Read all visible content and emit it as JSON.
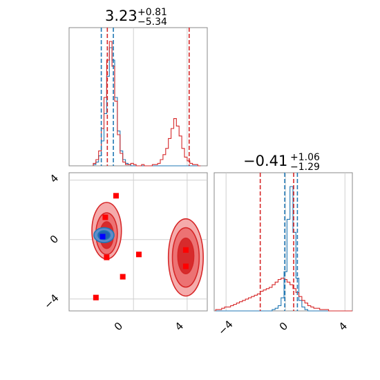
{
  "chart_data": [
    {
      "type": "histogram",
      "panel": "top-left",
      "title_main": "3.23",
      "title_plus": "+0.81",
      "title_minus": "−5.34",
      "xlim": [
        -4.8,
        5.5
      ],
      "grid": true,
      "x": [
        -2.9,
        -2.7,
        -2.5,
        -2.3,
        -2.1,
        -1.9,
        -1.7,
        -1.5,
        -1.3,
        -1.1,
        -0.9,
        -0.7,
        -0.5,
        -0.3,
        -0.1,
        0.1,
        0.3,
        0.5,
        0.7,
        0.9,
        1.1,
        1.3,
        1.5,
        1.7,
        1.9,
        2.1,
        2.3,
        2.5,
        2.7,
        2.9,
        3.1,
        3.3,
        3.5,
        3.7,
        3.9,
        4.1,
        4.3,
        4.5,
        4.7,
        4.9
      ],
      "series": [
        {
          "color": "#1f77b4",
          "values": [
            0.01,
            0.03,
            0.08,
            0.2,
            0.42,
            0.72,
            0.95,
            0.85,
            0.55,
            0.28,
            0.12,
            0.05,
            0.02,
            0.01,
            0,
            0,
            0,
            0,
            0,
            0,
            0,
            0,
            0,
            0,
            0,
            0,
            0,
            0,
            0,
            0,
            0,
            0,
            0,
            0,
            0,
            0,
            0,
            0,
            0,
            0
          ]
        },
        {
          "color": "#d62728",
          "values": [
            0.02,
            0.05,
            0.12,
            0.3,
            0.55,
            0.85,
            1.0,
            0.8,
            0.52,
            0.25,
            0.1,
            0.03,
            0.01,
            0.01,
            0.02,
            0.01,
            0,
            0,
            0.01,
            0,
            0,
            0,
            0.01,
            0.01,
            0.02,
            0.05,
            0.09,
            0.14,
            0.22,
            0.3,
            0.38,
            0.32,
            0.24,
            0.14,
            0.07,
            0.04,
            0.02,
            0.01,
            0.01,
            0
          ]
        }
      ],
      "vlines": [
        {
          "x": -2.4,
          "color": "#1f77b4"
        },
        {
          "x": -1.5,
          "color": "#1f77b4"
        },
        {
          "x": -1.95,
          "color": "#d62728"
        },
        {
          "x": 4.15,
          "color": "#d62728"
        }
      ]
    },
    {
      "type": "scatter",
      "panel": "bottom-left",
      "xlim": [
        -4.8,
        5.5
      ],
      "ylim": [
        -4.8,
        4.5
      ],
      "xticks": [
        "0",
        "4"
      ],
      "yticks": [
        "4",
        "0",
        "−4"
      ],
      "grid": true,
      "red_points": [
        [
          -1.3,
          2.95
        ],
        [
          -2.1,
          1.5
        ],
        [
          -2.0,
          -1.2
        ],
        [
          -0.8,
          -2.5
        ],
        [
          0.4,
          -1.0
        ],
        [
          -2.8,
          -3.9
        ],
        [
          3.9,
          -0.7
        ],
        [
          3.9,
          -1.8
        ]
      ],
      "blue_points": [
        [
          -2.3,
          0.2
        ]
      ],
      "contours": [
        {
          "cx": -2.0,
          "cy": 0.6,
          "rx": 1.1,
          "ry": 1.9,
          "fill": "#f4a6a6",
          "stroke": "#d62728"
        },
        {
          "cx": -2.0,
          "cy": 0.4,
          "rx": 0.8,
          "ry": 1.4,
          "fill": "#eb6f70",
          "stroke": "#d62728"
        },
        {
          "cx": -2.0,
          "cy": 0.3,
          "rx": 0.5,
          "ry": 0.9,
          "fill": "#d62728",
          "stroke": "#d62728"
        },
        {
          "cx": 3.9,
          "cy": -1.2,
          "rx": 1.3,
          "ry": 2.6,
          "fill": "#f4a6a6",
          "stroke": "#d62728"
        },
        {
          "cx": 3.9,
          "cy": -1.2,
          "rx": 1.0,
          "ry": 2.0,
          "fill": "#eb6f70",
          "stroke": "#d62728"
        },
        {
          "cx": 3.9,
          "cy": -1.1,
          "rx": 0.6,
          "ry": 1.2,
          "fill": "#d62728",
          "stroke": "#d62728"
        },
        {
          "cx": -2.2,
          "cy": 0.3,
          "rx": 0.75,
          "ry": 0.5,
          "fill": "#5b8fd0",
          "stroke": "#1f77b4"
        },
        {
          "cx": -2.2,
          "cy": 0.3,
          "rx": 0.45,
          "ry": 0.3,
          "fill": "#1f5fb0",
          "stroke": "#1f77b4"
        }
      ]
    },
    {
      "type": "histogram",
      "panel": "bottom-right",
      "title_main": "−0.41",
      "title_plus": "+1.06",
      "title_minus": "−1.29",
      "xlim": [
        -4.8,
        4.5
      ],
      "xticks": [
        "−4",
        "0",
        "4"
      ],
      "grid": true,
      "x": [
        -4.6,
        -4.4,
        -4.2,
        -4.0,
        -3.8,
        -3.6,
        -3.4,
        -3.2,
        -3.0,
        -2.8,
        -2.6,
        -2.4,
        -2.2,
        -2.0,
        -1.8,
        -1.6,
        -1.4,
        -1.2,
        -1.0,
        -0.8,
        -0.6,
        -0.4,
        -0.2,
        0.0,
        0.2,
        0.4,
        0.6,
        0.8,
        1.0,
        1.2,
        1.4,
        1.6,
        1.8,
        2.0,
        2.2,
        2.4,
        2.6,
        2.8,
        3.0,
        3.2,
        3.4,
        3.6,
        3.8,
        4.0,
        4.2,
        4.4
      ],
      "series": [
        {
          "color": "#1f77b4",
          "values": [
            0,
            0,
            0,
            0,
            0,
            0,
            0,
            0,
            0,
            0,
            0,
            0,
            0,
            0,
            0,
            0,
            0,
            0,
            0,
            0.01,
            0.02,
            0.04,
            0.1,
            0.3,
            0.7,
            0.95,
            0.6,
            0.25,
            0.08,
            0.03,
            0.01,
            0,
            0,
            0,
            0,
            0,
            0,
            0,
            0,
            0,
            0,
            0,
            0,
            0,
            0,
            0
          ]
        },
        {
          "color": "#d62728",
          "values": [
            0.01,
            0.01,
            0.02,
            0.03,
            0.03,
            0.04,
            0.05,
            0.06,
            0.07,
            0.08,
            0.09,
            0.1,
            0.11,
            0.12,
            0.13,
            0.15,
            0.16,
            0.17,
            0.18,
            0.2,
            0.22,
            0.24,
            0.25,
            0.24,
            0.22,
            0.2,
            0.17,
            0.14,
            0.11,
            0.08,
            0.06,
            0.04,
            0.03,
            0.02,
            0.02,
            0.01,
            0.01,
            0.01,
            0,
            0,
            0,
            0,
            0,
            0,
            0,
            0
          ]
        }
      ],
      "vlines": [
        {
          "x": -0.05,
          "color": "#1f77b4"
        },
        {
          "x": 0.8,
          "color": "#1f77b4"
        },
        {
          "x": 0.55,
          "color": "#d62728"
        },
        {
          "x": -1.7,
          "color": "#d62728"
        }
      ]
    }
  ]
}
